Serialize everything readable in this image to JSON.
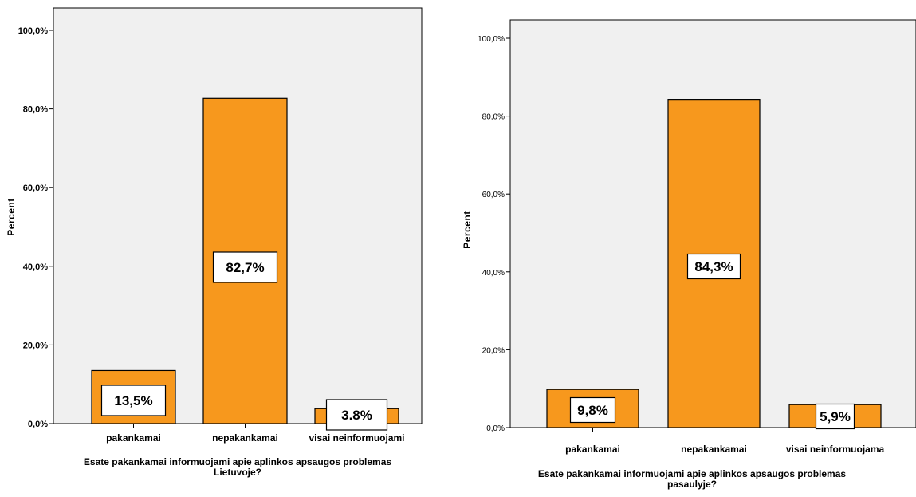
{
  "chart_data": [
    {
      "type": "bar",
      "categories": [
        "pakankamai",
        "nepakankamai",
        "visai neinformuojami"
      ],
      "values": [
        13.5,
        82.7,
        3.8
      ],
      "data_labels": [
        "13,5%",
        "82,7%",
        "3.8%"
      ],
      "yticks": [
        "0,0%",
        "20,0%",
        "40,0%",
        "60,0%",
        "80,0%",
        "100,0%"
      ],
      "ylim": [
        0,
        100
      ],
      "ylabel": "Percent",
      "xlabel_lines": [
        "Esate pakankamai informuojami apie aplinkos apsaugos problemas",
        "Lietuvoje?"
      ],
      "bar_color": "#f7981d",
      "plot_bg": "#f0f0f0",
      "grid": false
    },
    {
      "type": "bar",
      "categories": [
        "pakankamai",
        "nepakankamai",
        "visai neinformuojama"
      ],
      "values": [
        9.8,
        84.3,
        5.9
      ],
      "data_labels": [
        "9,8%",
        "84,3%",
        "5,9%"
      ],
      "yticks": [
        "0,0%",
        "20,0%",
        "40,0%",
        "60,0%",
        "80,0%",
        "100,0%"
      ],
      "ylim": [
        0,
        100
      ],
      "ylabel": "Percent",
      "xlabel_lines": [
        "Esate pakankamai informuojami apie aplinkos apsaugos problemas",
        "pasaulyje?"
      ],
      "bar_color": "#f7981d",
      "plot_bg": "#f0f0f0",
      "grid": false
    }
  ]
}
